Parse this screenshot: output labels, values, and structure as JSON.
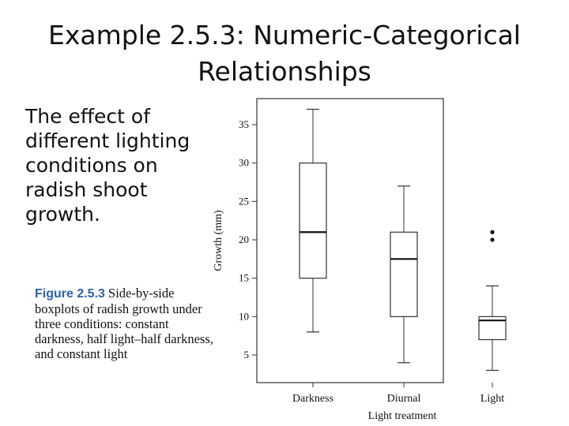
{
  "slide": {
    "title_line1": "Example 2.5.3: Numeric-Categorical",
    "title_line2": "Relationships",
    "body_line1": "The effect of",
    "body_line2": "different lighting",
    "body_line3": "conditions on",
    "body_line4": "radish shoot",
    "body_line5": "growth."
  },
  "caption": {
    "label": "Figure 2.5.3",
    "text": "Side-by-side boxplots of radish growth under three conditions: constant darkness, half light–half darkness, and constant light"
  },
  "chart_data": {
    "type": "boxplot",
    "xlabel": "Light treatment",
    "ylabel": "Growth (mm)",
    "ylim": [
      0,
      38
    ],
    "yticks": [
      5,
      10,
      15,
      20,
      25,
      30,
      35
    ],
    "categories": [
      "Darkness",
      "Diurnal",
      "Light"
    ],
    "boxes": [
      {
        "category": "Darkness",
        "whisker_low": 8,
        "q1": 15,
        "median": 21,
        "q3": 30,
        "whisker_high": 37,
        "outliers": []
      },
      {
        "category": "Diurnal",
        "whisker_low": 4,
        "q1": 10,
        "median": 17.5,
        "q3": 21,
        "whisker_high": 27,
        "outliers": []
      },
      {
        "category": "Light",
        "whisker_low": 3,
        "q1": 7,
        "median": 9.5,
        "q3": 10,
        "whisker_high": 14,
        "outliers": [
          20,
          21
        ]
      }
    ],
    "grid": false,
    "legend": "none"
  }
}
